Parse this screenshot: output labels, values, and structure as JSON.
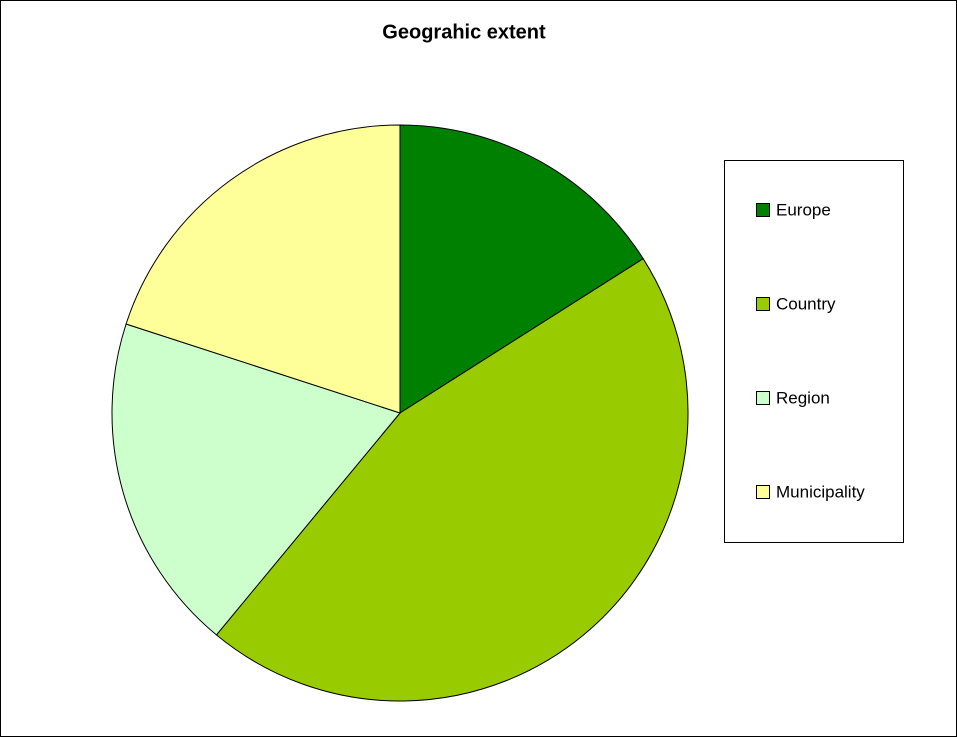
{
  "chart_data": {
    "type": "pie",
    "title": "Geograhic extent",
    "categories": [
      "Europe",
      "Country",
      "Region",
      "Municipality"
    ],
    "values": [
      16,
      45,
      19,
      20
    ],
    "colors": [
      "#008000",
      "#99cc00",
      "#ccffcc",
      "#ffff99"
    ],
    "legend": "right"
  }
}
